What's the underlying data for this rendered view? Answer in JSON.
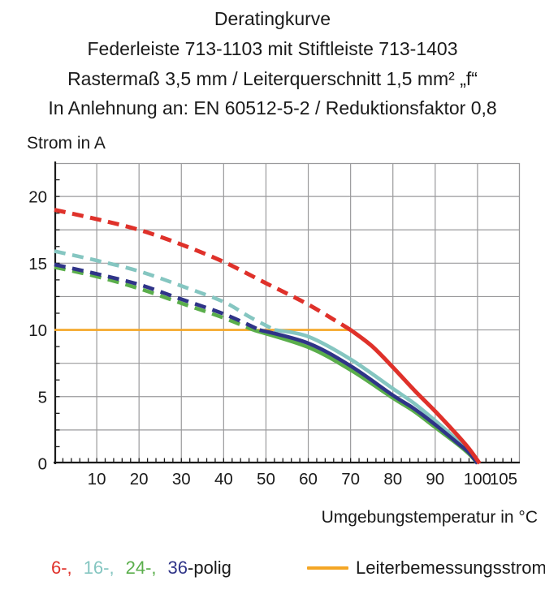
{
  "title_block": {
    "lines": [
      "Deratingkurve",
      "Federleiste 713-1103 mit Stiftleiste 713-1403",
      "Rastermaß 3,5 mm / Leiterquerschnitt 1,5 mm² „f“",
      "In Anlehnung an: EN 60512-5-2 / Reduktionsfaktor 0,8"
    ]
  },
  "axes": {
    "y_title": "Strom in A",
    "x_title": "Umgebungstemperatur in °C"
  },
  "legend": {
    "pole_items": [
      {
        "label": "6-,",
        "color": "#df312a"
      },
      {
        "label": "16-,",
        "color": "#85c6c1"
      },
      {
        "label": "24-,",
        "color": "#5aae4b"
      },
      {
        "label": "36",
        "color": "#2f3488"
      }
    ],
    "suffix": "-polig",
    "rated_label": "Leiterbemessungsstrom",
    "rated_color": "#f4a625"
  },
  "chart_data": {
    "type": "line",
    "title": "Deratingkurve",
    "xlabel": "Umgebungstemperatur in °C",
    "ylabel": "Strom in A",
    "xlim": [
      0,
      110
    ],
    "ylim": [
      0,
      22.5
    ],
    "grid": true,
    "grid_color": "#9a9a9c",
    "axis_color": "#1a1a1a",
    "x_grid_step": 10,
    "y_grid_step": 2.5,
    "x_minor_tick_step": 2,
    "y_minor_tick_step": 1.25,
    "x_ticks": [
      "10",
      "20",
      "30",
      "40",
      "50",
      "60",
      "70",
      "80",
      "90",
      "100",
      "105"
    ],
    "x_tick_values": [
      10,
      20,
      30,
      40,
      50,
      60,
      70,
      80,
      90,
      100,
      105
    ],
    "y_ticks": [
      "0",
      "5",
      "10",
      "15",
      "20"
    ],
    "y_tick_values": [
      0,
      5,
      10,
      15,
      20
    ],
    "legend_position": "bottom",
    "series": [
      {
        "name": "Leiterbemessungsstrom",
        "color": "#f4a625",
        "style": "solid",
        "width": 2.6,
        "points": [
          [
            0,
            10
          ],
          [
            70.5,
            10
          ]
        ]
      },
      {
        "name": "24-polig",
        "color": "#5aae4b",
        "style": "dashed-then-solid",
        "solid_from_x": 47,
        "width": 4.6,
        "points": [
          [
            0,
            14.7
          ],
          [
            10,
            14.0
          ],
          [
            20,
            13.1
          ],
          [
            30,
            12.0
          ],
          [
            40,
            10.9
          ],
          [
            47,
            10
          ],
          [
            60,
            8.7
          ],
          [
            70,
            7.0
          ],
          [
            80,
            4.9
          ],
          [
            85,
            3.9
          ],
          [
            90,
            2.7
          ],
          [
            95,
            1.5
          ],
          [
            98,
            0.7
          ],
          [
            100,
            0
          ]
        ]
      },
      {
        "name": "16-polig",
        "color": "#85c6c1",
        "style": "dashed-then-solid",
        "solid_from_x": 52,
        "width": 4.6,
        "points": [
          [
            0,
            15.9
          ],
          [
            10,
            15.2
          ],
          [
            20,
            14.4
          ],
          [
            30,
            13.3
          ],
          [
            40,
            12.1
          ],
          [
            46,
            11.0
          ],
          [
            52,
            10
          ],
          [
            60,
            9.5
          ],
          [
            70,
            7.8
          ],
          [
            80,
            5.6
          ],
          [
            85,
            4.5
          ],
          [
            90,
            3.2
          ],
          [
            95,
            1.8
          ],
          [
            98,
            0.9
          ],
          [
            100,
            0
          ]
        ]
      },
      {
        "name": "36-polig",
        "color": "#2f3488",
        "style": "dashed-then-solid",
        "solid_from_x": 48.5,
        "width": 4.6,
        "points": [
          [
            0,
            14.9
          ],
          [
            10,
            14.2
          ],
          [
            20,
            13.4
          ],
          [
            30,
            12.3
          ],
          [
            40,
            11.2
          ],
          [
            48.5,
            10
          ],
          [
            60,
            9.0
          ],
          [
            70,
            7.3
          ],
          [
            80,
            5.1
          ],
          [
            85,
            4.1
          ],
          [
            90,
            2.9
          ],
          [
            95,
            1.6
          ],
          [
            98,
            0.8
          ],
          [
            100,
            0
          ]
        ]
      },
      {
        "name": "6-polig",
        "color": "#df312a",
        "style": "dashed-then-solid",
        "solid_from_x": 70,
        "width": 5,
        "points": [
          [
            0,
            19.0
          ],
          [
            10,
            18.3
          ],
          [
            20,
            17.5
          ],
          [
            30,
            16.4
          ],
          [
            40,
            15.1
          ],
          [
            50,
            13.5
          ],
          [
            60,
            11.9
          ],
          [
            70,
            10
          ],
          [
            75,
            8.8
          ],
          [
            80,
            7.2
          ],
          [
            85,
            5.5
          ],
          [
            90,
            3.9
          ],
          [
            95,
            2.2
          ],
          [
            98,
            1.1
          ],
          [
            100.5,
            0
          ]
        ]
      }
    ]
  }
}
